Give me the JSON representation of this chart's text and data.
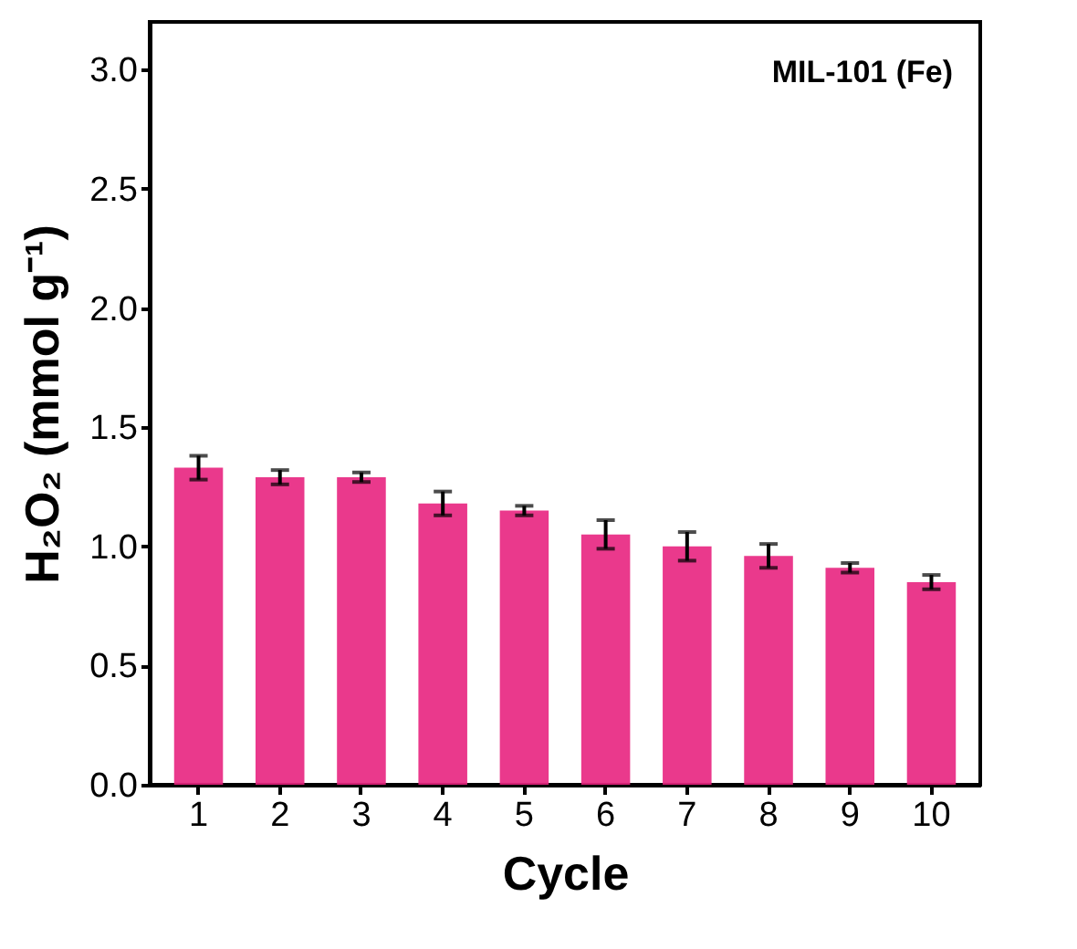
{
  "chart_data": {
    "type": "bar",
    "xlabel": "Cycle",
    "ylabel": "H₂O₂ (mmol g⁻¹)",
    "annotations": [
      "MIL-101 (Fe)"
    ],
    "categories": [
      "1",
      "2",
      "3",
      "4",
      "5",
      "6",
      "7",
      "8",
      "9",
      "10"
    ],
    "values": [
      1.33,
      1.29,
      1.29,
      1.18,
      1.15,
      1.05,
      1.0,
      0.96,
      0.91,
      0.85
    ],
    "errors": [
      0.05,
      0.03,
      0.02,
      0.05,
      0.02,
      0.06,
      0.06,
      0.05,
      0.02,
      0.03
    ],
    "color": "#e8237f",
    "ylim": [
      0,
      3.2
    ],
    "yticks": [
      {
        "value": 0,
        "label": "0.0"
      },
      0.5,
      {
        "value": 1,
        "label": "1.0"
      },
      1.5,
      {
        "value": 2,
        "label": "2.0"
      },
      2.5,
      {
        "value": 3,
        "label": "3.0"
      }
    ],
    "grid": false
  }
}
